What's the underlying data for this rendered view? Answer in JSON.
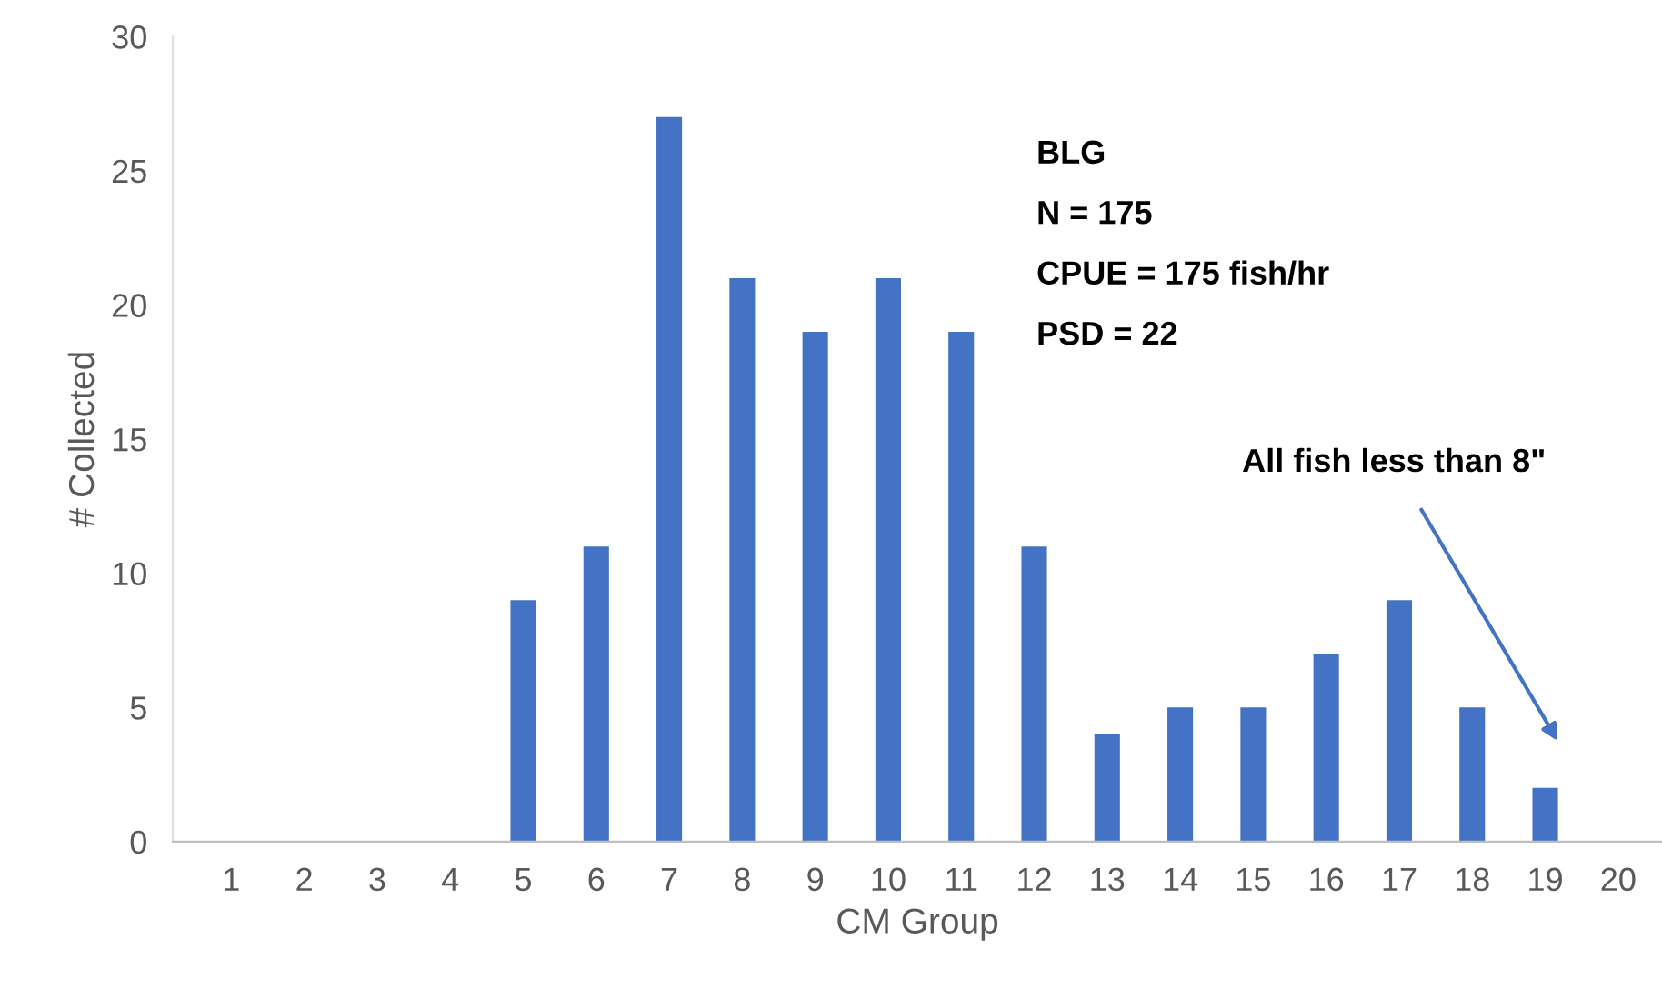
{
  "chart_data": {
    "type": "bar",
    "xlabel": "CM Group",
    "ylabel": "# Collected",
    "categories": [
      "1",
      "2",
      "3",
      "4",
      "5",
      "6",
      "7",
      "8",
      "9",
      "10",
      "11",
      "12",
      "13",
      "14",
      "15",
      "16",
      "17",
      "18",
      "19",
      "20"
    ],
    "values": [
      0,
      0,
      0,
      0,
      9,
      11,
      27,
      21,
      19,
      21,
      19,
      11,
      4,
      5,
      5,
      7,
      9,
      5,
      2,
      0
    ],
    "color": "#4472c4",
    "ylim": [
      0,
      30
    ],
    "yticks": [
      0,
      5,
      10,
      15,
      20,
      25,
      30
    ],
    "grid": false,
    "annotations": [
      "BLG",
      "N = 175",
      "CPUE = 175 fish/hr",
      "PSD = 22",
      "All fish less than 8\""
    ]
  }
}
